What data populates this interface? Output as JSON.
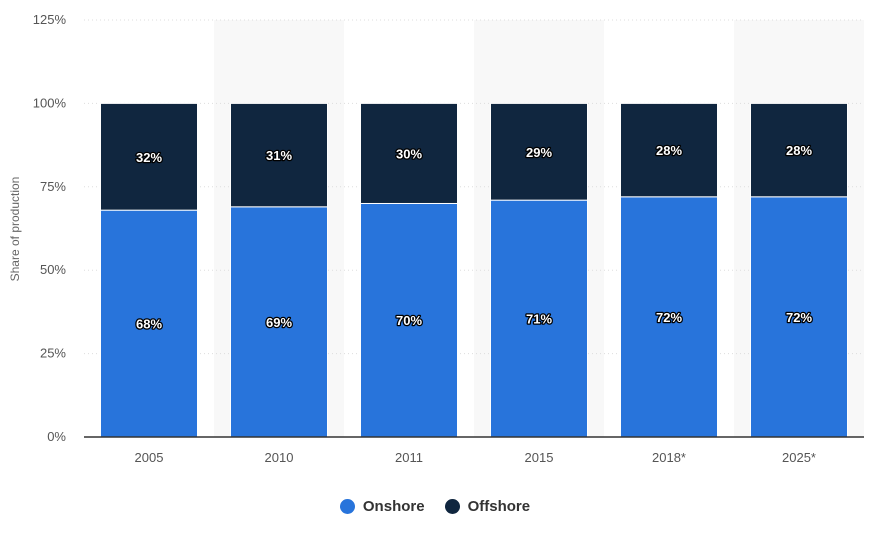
{
  "chart_data": {
    "type": "bar",
    "stacked": true,
    "categories": [
      "2005",
      "2010",
      "2011",
      "2015",
      "2018*",
      "2025*"
    ],
    "series": [
      {
        "name": "Onshore",
        "values": [
          68,
          69,
          70,
          71,
          72,
          72
        ],
        "labels": [
          "68%",
          "69%",
          "70%",
          "71%",
          "72%",
          "72%"
        ],
        "color": "#2874db"
      },
      {
        "name": "Offshore",
        "values": [
          32,
          31,
          30,
          29,
          28,
          28
        ],
        "labels": [
          "32%",
          "31%",
          "30%",
          "29%",
          "28%",
          "28%"
        ],
        "color": "#10263f"
      }
    ],
    "ylabel": "Share of production",
    "ylim": [
      0,
      125
    ],
    "yticks": [
      0,
      25,
      50,
      75,
      100,
      125
    ],
    "ytick_labels": [
      "0%",
      "25%",
      "50%",
      "75%",
      "100%",
      "125%"
    ],
    "grid": true,
    "legend_position": "bottom-center"
  }
}
